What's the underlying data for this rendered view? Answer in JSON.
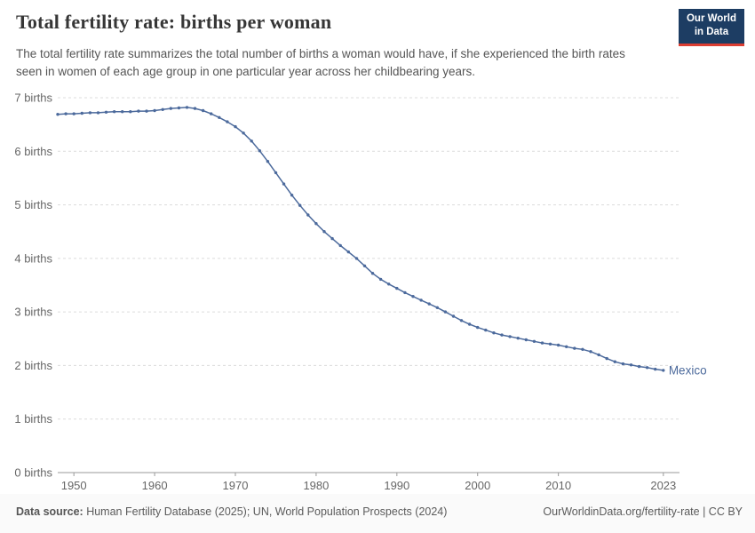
{
  "header": {
    "title": "Total fertility rate: births per woman",
    "subtitle": "The total fertility rate summarizes the total number of births a woman would have, if she experienced the birth rates seen in women of each age group in one particular year across her childbearing years.",
    "logo": {
      "line1": "Our World",
      "line2": "in Data",
      "bg_color": "#1d3d63",
      "accent_color": "#dc3e32"
    }
  },
  "chart_data": {
    "type": "line",
    "title": "Total fertility rate: births per woman",
    "entity": "Mexico",
    "xlabel": "",
    "ylabel": "",
    "ylim": [
      0,
      7
    ],
    "x_range": [
      1948,
      2025
    ],
    "grid": true,
    "legend_position": "end-of-line-label",
    "line_color": "#4c6a9c",
    "grid_color": "#dcdcdc",
    "axis_color": "#999999",
    "tick_label_color": "#666666",
    "yticks": [
      {
        "v": 0,
        "label": "0 births"
      },
      {
        "v": 1,
        "label": "1 births"
      },
      {
        "v": 2,
        "label": "2 births"
      },
      {
        "v": 3,
        "label": "3 births"
      },
      {
        "v": 4,
        "label": "4 births"
      },
      {
        "v": 5,
        "label": "5 births"
      },
      {
        "v": 6,
        "label": "6 births"
      },
      {
        "v": 7,
        "label": "7 births"
      }
    ],
    "xticks": [
      {
        "v": 1950,
        "label": "1950"
      },
      {
        "v": 1960,
        "label": "1960"
      },
      {
        "v": 1970,
        "label": "1970"
      },
      {
        "v": 1980,
        "label": "1980"
      },
      {
        "v": 1990,
        "label": "1990"
      },
      {
        "v": 2000,
        "label": "2000"
      },
      {
        "v": 2010,
        "label": "2010"
      },
      {
        "v": 2023,
        "label": "2023"
      }
    ],
    "x": [
      1948,
      1949,
      1950,
      1951,
      1952,
      1953,
      1954,
      1955,
      1956,
      1957,
      1958,
      1959,
      1960,
      1961,
      1962,
      1963,
      1964,
      1965,
      1966,
      1967,
      1968,
      1969,
      1970,
      1971,
      1972,
      1973,
      1974,
      1975,
      1976,
      1977,
      1978,
      1979,
      1980,
      1981,
      1982,
      1983,
      1984,
      1985,
      1986,
      1987,
      1988,
      1989,
      1990,
      1991,
      1992,
      1993,
      1994,
      1995,
      1996,
      1997,
      1998,
      1999,
      2000,
      2001,
      2002,
      2003,
      2004,
      2005,
      2006,
      2007,
      2008,
      2009,
      2010,
      2011,
      2012,
      2013,
      2014,
      2015,
      2016,
      2017,
      2018,
      2019,
      2020,
      2021,
      2022,
      2023
    ],
    "values": [
      6.69,
      6.7,
      6.7,
      6.71,
      6.72,
      6.72,
      6.73,
      6.74,
      6.74,
      6.74,
      6.75,
      6.75,
      6.76,
      6.78,
      6.8,
      6.81,
      6.82,
      6.8,
      6.76,
      6.7,
      6.63,
      6.55,
      6.46,
      6.34,
      6.19,
      6.01,
      5.81,
      5.6,
      5.39,
      5.18,
      4.99,
      4.81,
      4.65,
      4.5,
      4.37,
      4.24,
      4.12,
      4.0,
      3.86,
      3.72,
      3.61,
      3.52,
      3.44,
      3.36,
      3.29,
      3.22,
      3.15,
      3.08,
      3.0,
      2.92,
      2.84,
      2.77,
      2.71,
      2.66,
      2.61,
      2.57,
      2.54,
      2.51,
      2.48,
      2.45,
      2.42,
      2.4,
      2.38,
      2.35,
      2.32,
      2.3,
      2.26,
      2.2,
      2.13,
      2.07,
      2.03,
      2.01,
      1.98,
      1.96,
      1.93,
      1.91
    ]
  },
  "footer": {
    "source_prefix": "Data source:",
    "source_text": " Human Fertility Database (2025); UN, World Population Prospects (2024)",
    "link": "OurWorldinData.org/fertility-rate | CC BY"
  }
}
